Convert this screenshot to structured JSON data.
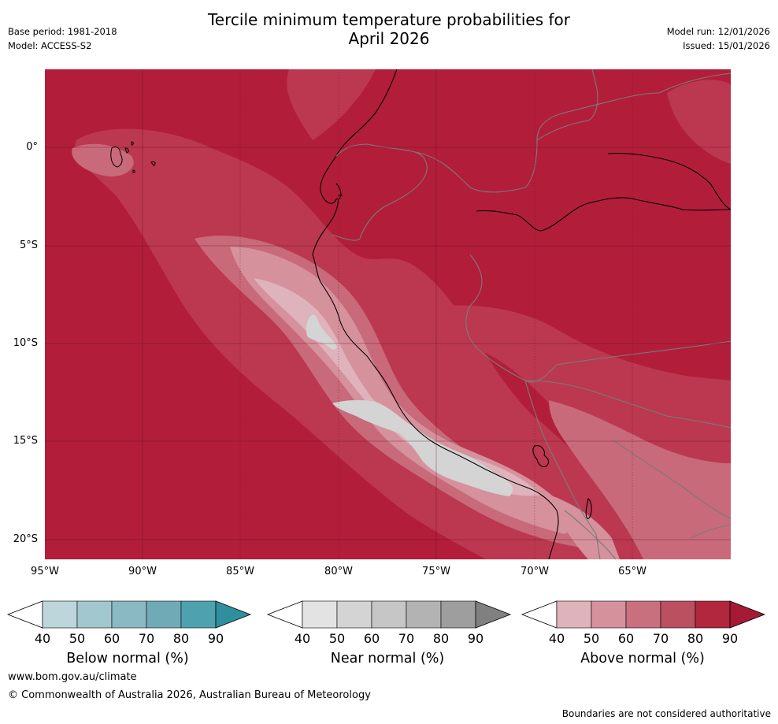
{
  "title_line1": "Tercile minimum temperature probabilities for",
  "title_line2": "April 2026",
  "base_period": "Base period: 1981-2018",
  "model": "Model: ACCESS-S2",
  "model_run": "Model run: 12/01/2026",
  "issued": "Issued: 15/01/2026",
  "lat_labels": [
    "0°",
    "5°S",
    "10°S",
    "15°S",
    "20°S"
  ],
  "lon_labels": [
    "95°W",
    "90°W",
    "85°W",
    "80°W",
    "75°W",
    "70°W",
    "65°W"
  ],
  "colorbars": [
    {
      "title": "Below normal (%)",
      "ticks": [
        "40",
        "50",
        "60",
        "70",
        "80",
        "90"
      ],
      "colors": [
        "#bcd6dc",
        "#a3c7cf",
        "#8bb9c3",
        "#71aab7",
        "#4ea2b0",
        "#2f8f9f"
      ]
    },
    {
      "title": "Near normal (%)",
      "ticks": [
        "40",
        "50",
        "60",
        "70",
        "80",
        "90"
      ],
      "colors": [
        "#e3e3e3",
        "#d4d4d4",
        "#c6c6c6",
        "#b3b3b3",
        "#9e9e9e",
        "#808080"
      ]
    },
    {
      "title": "Above normal (%)",
      "ticks": [
        "40",
        "50",
        "60",
        "70",
        "80",
        "90"
      ],
      "colors": [
        "#dfb3bb",
        "#d5929d",
        "#c8707e",
        "#bb5060",
        "#b2263e",
        "#a51a35"
      ]
    }
  ],
  "website": "www.bom.gov.au/climate",
  "copyright": "© Commonwealth of Australia 2026, Australian Bureau of Meteorology",
  "disclaimer": "Boundaries are not considered authoritative"
}
